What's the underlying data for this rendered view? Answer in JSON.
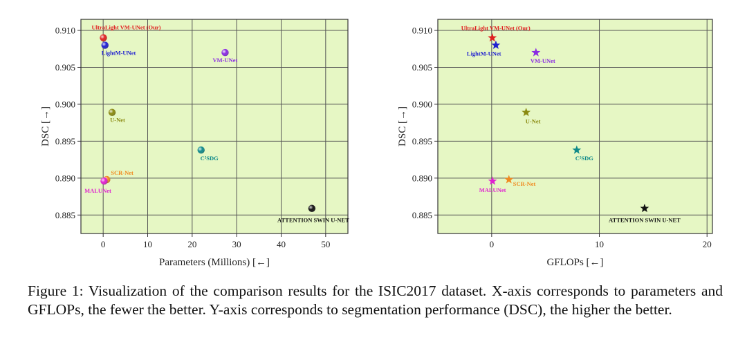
{
  "chart_data": [
    {
      "type": "scatter",
      "xlabel": "Parameters (Millions) [←]",
      "ylabel": "DSC [→]",
      "xlim": [
        -5,
        55
      ],
      "ylim": [
        0.8825,
        0.9115
      ],
      "xticks": [
        0,
        10,
        20,
        30,
        40,
        50
      ],
      "yticks": [
        0.885,
        0.89,
        0.895,
        0.9,
        0.905,
        0.91
      ],
      "ytick_labels": [
        "0.885",
        "0.890",
        "0.895",
        "0.900",
        "0.905",
        "0.910"
      ],
      "marker": "sphere",
      "grid": true,
      "points": [
        {
          "label": "UltraLight VM-UNet (Our)",
          "x": 0.05,
          "y": 0.909,
          "color": "#e02020"
        },
        {
          "label": "LightM-UNet",
          "x": 0.4,
          "y": 0.908,
          "color": "#2020d0"
        },
        {
          "label": "VM-UNet",
          "x": 27.4,
          "y": 0.907,
          "color": "#8a2be2"
        },
        {
          "label": "U-Net",
          "x": 2.0,
          "y": 0.8989,
          "color": "#8a8a10"
        },
        {
          "label": "C²SDG",
          "x": 22.0,
          "y": 0.8938,
          "color": "#108a8a"
        },
        {
          "label": "SCR-Net",
          "x": 0.8,
          "y": 0.8898,
          "color": "#f08a20"
        },
        {
          "label": "MALUNet",
          "x": 0.2,
          "y": 0.8896,
          "color": "#e020d0"
        },
        {
          "label": "ATTENTION SWIN U-NET",
          "x": 46.9,
          "y": 0.8859,
          "color": "#111111"
        }
      ]
    },
    {
      "type": "scatter",
      "xlabel": "GFLOPs [←]",
      "ylabel": "DSC [→]",
      "xlim": [
        -5,
        20.5
      ],
      "ylim": [
        0.8825,
        0.9115
      ],
      "xticks": [
        0,
        10,
        20
      ],
      "yticks": [
        0.885,
        0.89,
        0.895,
        0.9,
        0.905,
        0.91
      ],
      "ytick_labels": [
        "0.885",
        "0.890",
        "0.895",
        "0.900",
        "0.905",
        "0.910"
      ],
      "marker": "star",
      "grid": true,
      "points": [
        {
          "label": "UltraLight VM-UNet (Our)",
          "x": 0.06,
          "y": 0.909,
          "color": "#e02020"
        },
        {
          "label": "LightM-UNet",
          "x": 0.39,
          "y": 0.908,
          "color": "#2020d0"
        },
        {
          "label": "VM-UNet",
          "x": 4.11,
          "y": 0.907,
          "color": "#8a2be2"
        },
        {
          "label": "U-Net",
          "x": 3.2,
          "y": 0.8989,
          "color": "#8a8a10"
        },
        {
          "label": "C²SDG",
          "x": 7.9,
          "y": 0.8938,
          "color": "#108a8a"
        },
        {
          "label": "SCR-Net",
          "x": 1.6,
          "y": 0.8898,
          "color": "#f08a20"
        },
        {
          "label": "MALUNet",
          "x": 0.08,
          "y": 0.8896,
          "color": "#e020d0"
        },
        {
          "label": "ATTENTION SWIN U-NET",
          "x": 14.2,
          "y": 0.8859,
          "color": "#111111"
        }
      ]
    }
  ],
  "caption": "Figure 1: Visualization of the comparison results for the ISIC2017 dataset. X-axis corresponds to parameters and GFLOPs, the fewer the better. Y-axis corresponds to segmentation performance (DSC), the higher the better."
}
